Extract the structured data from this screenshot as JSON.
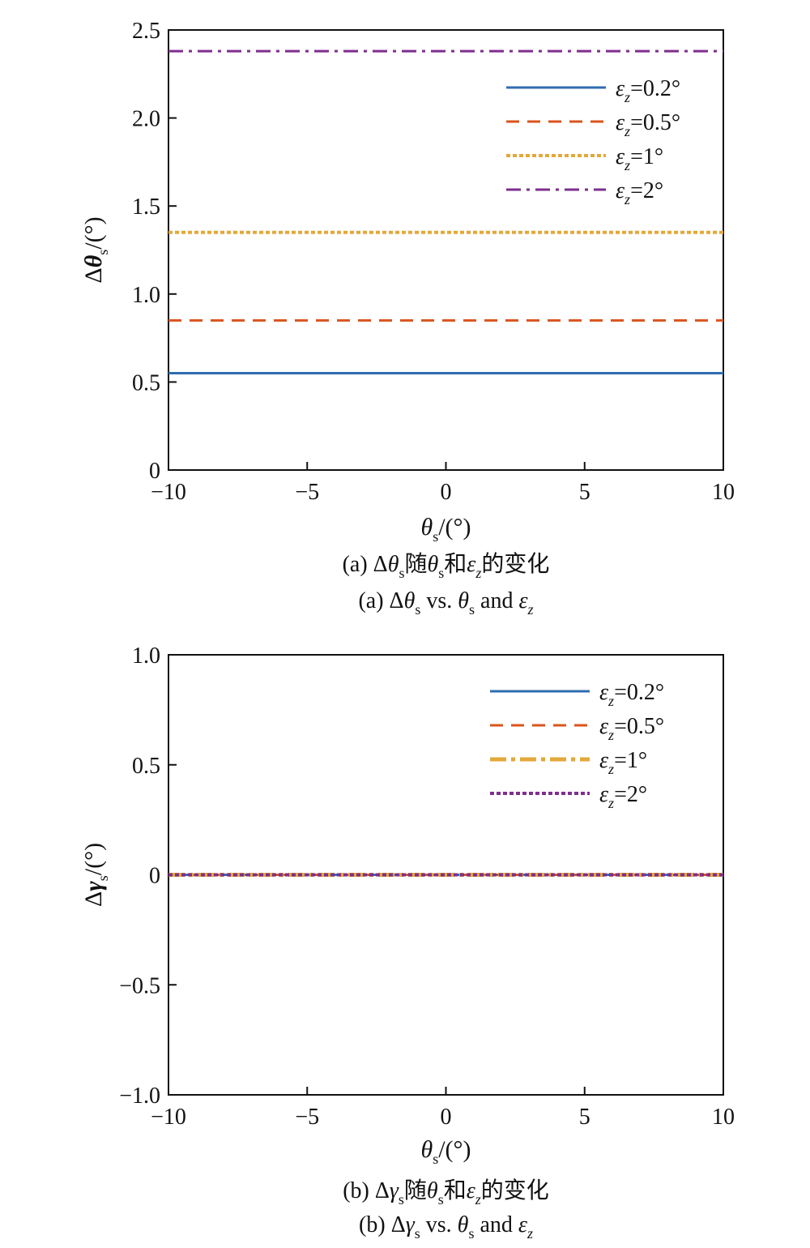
{
  "chart_data": [
    {
      "type": "line",
      "panel": "a",
      "xlim": [
        -10,
        10
      ],
      "ylim": [
        0,
        2.5
      ],
      "x_ticks": [
        "−10",
        "−5",
        "0",
        "5",
        "10"
      ],
      "x_tick_values": [
        -10,
        -5,
        0,
        5,
        10
      ],
      "y_ticks": [
        "0",
        "0.5",
        "1.0",
        "1.5",
        "2.0",
        "2.5"
      ],
      "y_tick_values": [
        0,
        0.5,
        1.0,
        1.5,
        2.0,
        2.5
      ],
      "xlabel": {
        "sym": "θ",
        "sub": "s",
        "rest": "/(°)"
      },
      "ylabel": {
        "pre": "Δ",
        "sym": "θ",
        "sub": "s",
        "rest": "/(°)"
      },
      "legend_placement": "top-right",
      "series": [
        {
          "label_sub": "z",
          "label_rest": "=0.2°",
          "color": "#2f6db0",
          "style": "solid",
          "x": [
            -10,
            10
          ],
          "y": [
            0.55,
            0.55
          ]
        },
        {
          "label_sub": "z",
          "label_rest": "=0.5°",
          "color": "#d9541e",
          "style": "dashed",
          "x": [
            -10,
            10
          ],
          "y": [
            0.85,
            0.85
          ]
        },
        {
          "label_sub": "z",
          "label_rest": "=1°",
          "color": "#e3a83a",
          "style": "dotted",
          "x": [
            -10,
            10
          ],
          "y": [
            1.35,
            1.35
          ]
        },
        {
          "label_sub": "z",
          "label_rest": "=2°",
          "color": "#7e2f8e",
          "style": "dashdot",
          "x": [
            -10,
            10
          ],
          "y": [
            2.38,
            2.38
          ]
        }
      ],
      "caption_cn": {
        "p1": "(a) Δ",
        "sym1": "θ",
        "sub1": "s",
        "p2": "随",
        "sym2": "θ",
        "sub2": "s",
        "p3": "和",
        "sym3": "ε",
        "sub3": "z",
        "p4": "的变化"
      },
      "caption_en": {
        "p1": "(a) Δ",
        "sym1": "θ",
        "sub1": "s",
        "p2": " vs. ",
        "sym2": "θ",
        "sub2": "s",
        "p3": " and ",
        "sym3": "ε",
        "sub3": "z"
      }
    },
    {
      "type": "line",
      "panel": "b",
      "xlim": [
        -10,
        10
      ],
      "ylim": [
        -1,
        1
      ],
      "x_ticks": [
        "−10",
        "−5",
        "0",
        "5",
        "10"
      ],
      "x_tick_values": [
        -10,
        -5,
        0,
        5,
        10
      ],
      "y_ticks": [
        "−1.0",
        "−0.5",
        "0",
        "0.5",
        "1.0"
      ],
      "y_tick_values": [
        -1,
        -0.5,
        0,
        0.5,
        1
      ],
      "xlabel": {
        "sym": "θ",
        "sub": "s",
        "rest": "/(°)"
      },
      "ylabel": {
        "pre": "Δ",
        "sym": "γ",
        "sub": "s",
        "rest": "/(°)"
      },
      "legend_placement": "top-right",
      "series": [
        {
          "label_sub": "z",
          "label_rest": "=0.2°",
          "color": "#2f6db0",
          "style": "solid",
          "x": [
            -10,
            10
          ],
          "y": [
            0,
            0
          ]
        },
        {
          "label_sub": "z",
          "label_rest": "=0.5°",
          "color": "#d9541e",
          "style": "dashed",
          "x": [
            -10,
            10
          ],
          "y": [
            0,
            0
          ]
        },
        {
          "label_sub": "z",
          "label_rest": "=1°",
          "color": "#e3a83a",
          "style": "dashdot-thick",
          "x": [
            -10,
            10
          ],
          "y": [
            0,
            0
          ]
        },
        {
          "label_sub": "z",
          "label_rest": "=2°",
          "color": "#7e2f8e",
          "style": "dotted",
          "x": [
            -10,
            10
          ],
          "y": [
            0,
            0
          ]
        }
      ],
      "caption_cn": {
        "p1": "(b) Δ",
        "sym1": "γ",
        "sub1": "s",
        "p2": "随",
        "sym2": "θ",
        "sub2": "s",
        "p3": "和",
        "sym3": "ε",
        "sub3": "z",
        "p4": "的变化"
      },
      "caption_en": {
        "p1": "(b) Δ",
        "sym1": "γ",
        "sub1": "s",
        "p2": " vs. ",
        "sym2": "θ",
        "sub2": "s",
        "p3": " and ",
        "sym3": "ε",
        "sub3": "z"
      }
    }
  ],
  "legend_symbol": "ε"
}
